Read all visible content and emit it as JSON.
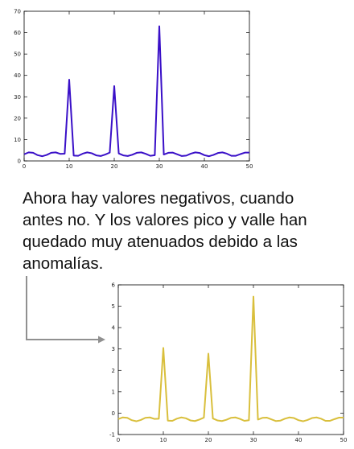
{
  "annotation": {
    "lines": [
      "Ahora hay valores negativos, cuando",
      "antes no. Y los valores pico y valle han",
      "quedado muy atenuados debido a las",
      "anomalías."
    ],
    "arrow_color": "#909090"
  },
  "chart_data": [
    {
      "type": "line",
      "title": "",
      "xlabel": "",
      "ylabel": "",
      "xlim": [
        0,
        50
      ],
      "ylim": [
        0,
        70
      ],
      "grid": false,
      "xticks": [
        0,
        10,
        20,
        30,
        40,
        50
      ],
      "yticks": [
        0,
        10,
        20,
        30,
        40,
        50,
        60,
        70
      ],
      "series": [
        {
          "color": "#3a10c8",
          "x": [
            0,
            1,
            2,
            3,
            4,
            5,
            6,
            7,
            8,
            9,
            10,
            11,
            12,
            13,
            14,
            15,
            16,
            17,
            18,
            19,
            20,
            21,
            22,
            23,
            24,
            25,
            26,
            27,
            28,
            29,
            30,
            31,
            32,
            33,
            34,
            35,
            36,
            37,
            38,
            39,
            40,
            41,
            42,
            43,
            44,
            45,
            46,
            47,
            48,
            49,
            50
          ],
          "values": [
            3.1,
            4,
            3.8,
            2.7,
            2.2,
            2.8,
            3.8,
            4,
            3.3,
            3.4,
            38,
            2.5,
            2.4,
            3.4,
            4,
            3.6,
            2.6,
            2.3,
            3,
            3.9,
            35,
            3.5,
            2.6,
            2.3,
            2.9,
            3.8,
            4,
            3.3,
            2.4,
            2.7,
            63,
            3,
            3.8,
            3.9,
            3.1,
            2.3,
            2.5,
            3.4,
            4,
            3.7,
            2.7,
            2.2,
            2.8,
            3.7,
            4,
            3.4,
            2.4,
            2.4,
            3.2,
            3.9,
            3.9
          ]
        }
      ]
    },
    {
      "type": "line",
      "title": "",
      "xlabel": "",
      "ylabel": "",
      "xlim": [
        0,
        50
      ],
      "ylim": [
        -1,
        6
      ],
      "grid": false,
      "xticks": [
        0,
        10,
        20,
        30,
        40,
        50
      ],
      "yticks": [
        -1,
        0,
        1,
        2,
        3,
        4,
        5,
        6
      ],
      "series": [
        {
          "color": "#d9bf3c",
          "x": [
            0,
            1,
            2,
            3,
            4,
            5,
            6,
            7,
            8,
            9,
            10,
            11,
            12,
            13,
            14,
            15,
            16,
            17,
            18,
            19,
            20,
            21,
            22,
            23,
            24,
            25,
            26,
            27,
            28,
            29,
            30,
            31,
            32,
            33,
            34,
            35,
            36,
            37,
            38,
            39,
            40,
            41,
            42,
            43,
            44,
            45,
            46,
            47,
            48,
            49,
            50
          ],
          "values": [
            -0.28,
            -0.2,
            -0.22,
            -0.33,
            -0.38,
            -0.32,
            -0.22,
            -0.2,
            -0.27,
            -0.26,
            3.05,
            -0.35,
            -0.36,
            -0.26,
            -0.2,
            -0.24,
            -0.34,
            -0.37,
            -0.3,
            -0.21,
            2.78,
            -0.25,
            -0.34,
            -0.37,
            -0.31,
            -0.22,
            -0.2,
            -0.27,
            -0.36,
            -0.33,
            5.45,
            -0.3,
            -0.22,
            -0.21,
            -0.29,
            -0.37,
            -0.35,
            -0.26,
            -0.2,
            -0.23,
            -0.33,
            -0.38,
            -0.32,
            -0.23,
            -0.2,
            -0.26,
            -0.36,
            -0.36,
            -0.28,
            -0.21,
            -0.21
          ]
        }
      ]
    }
  ]
}
